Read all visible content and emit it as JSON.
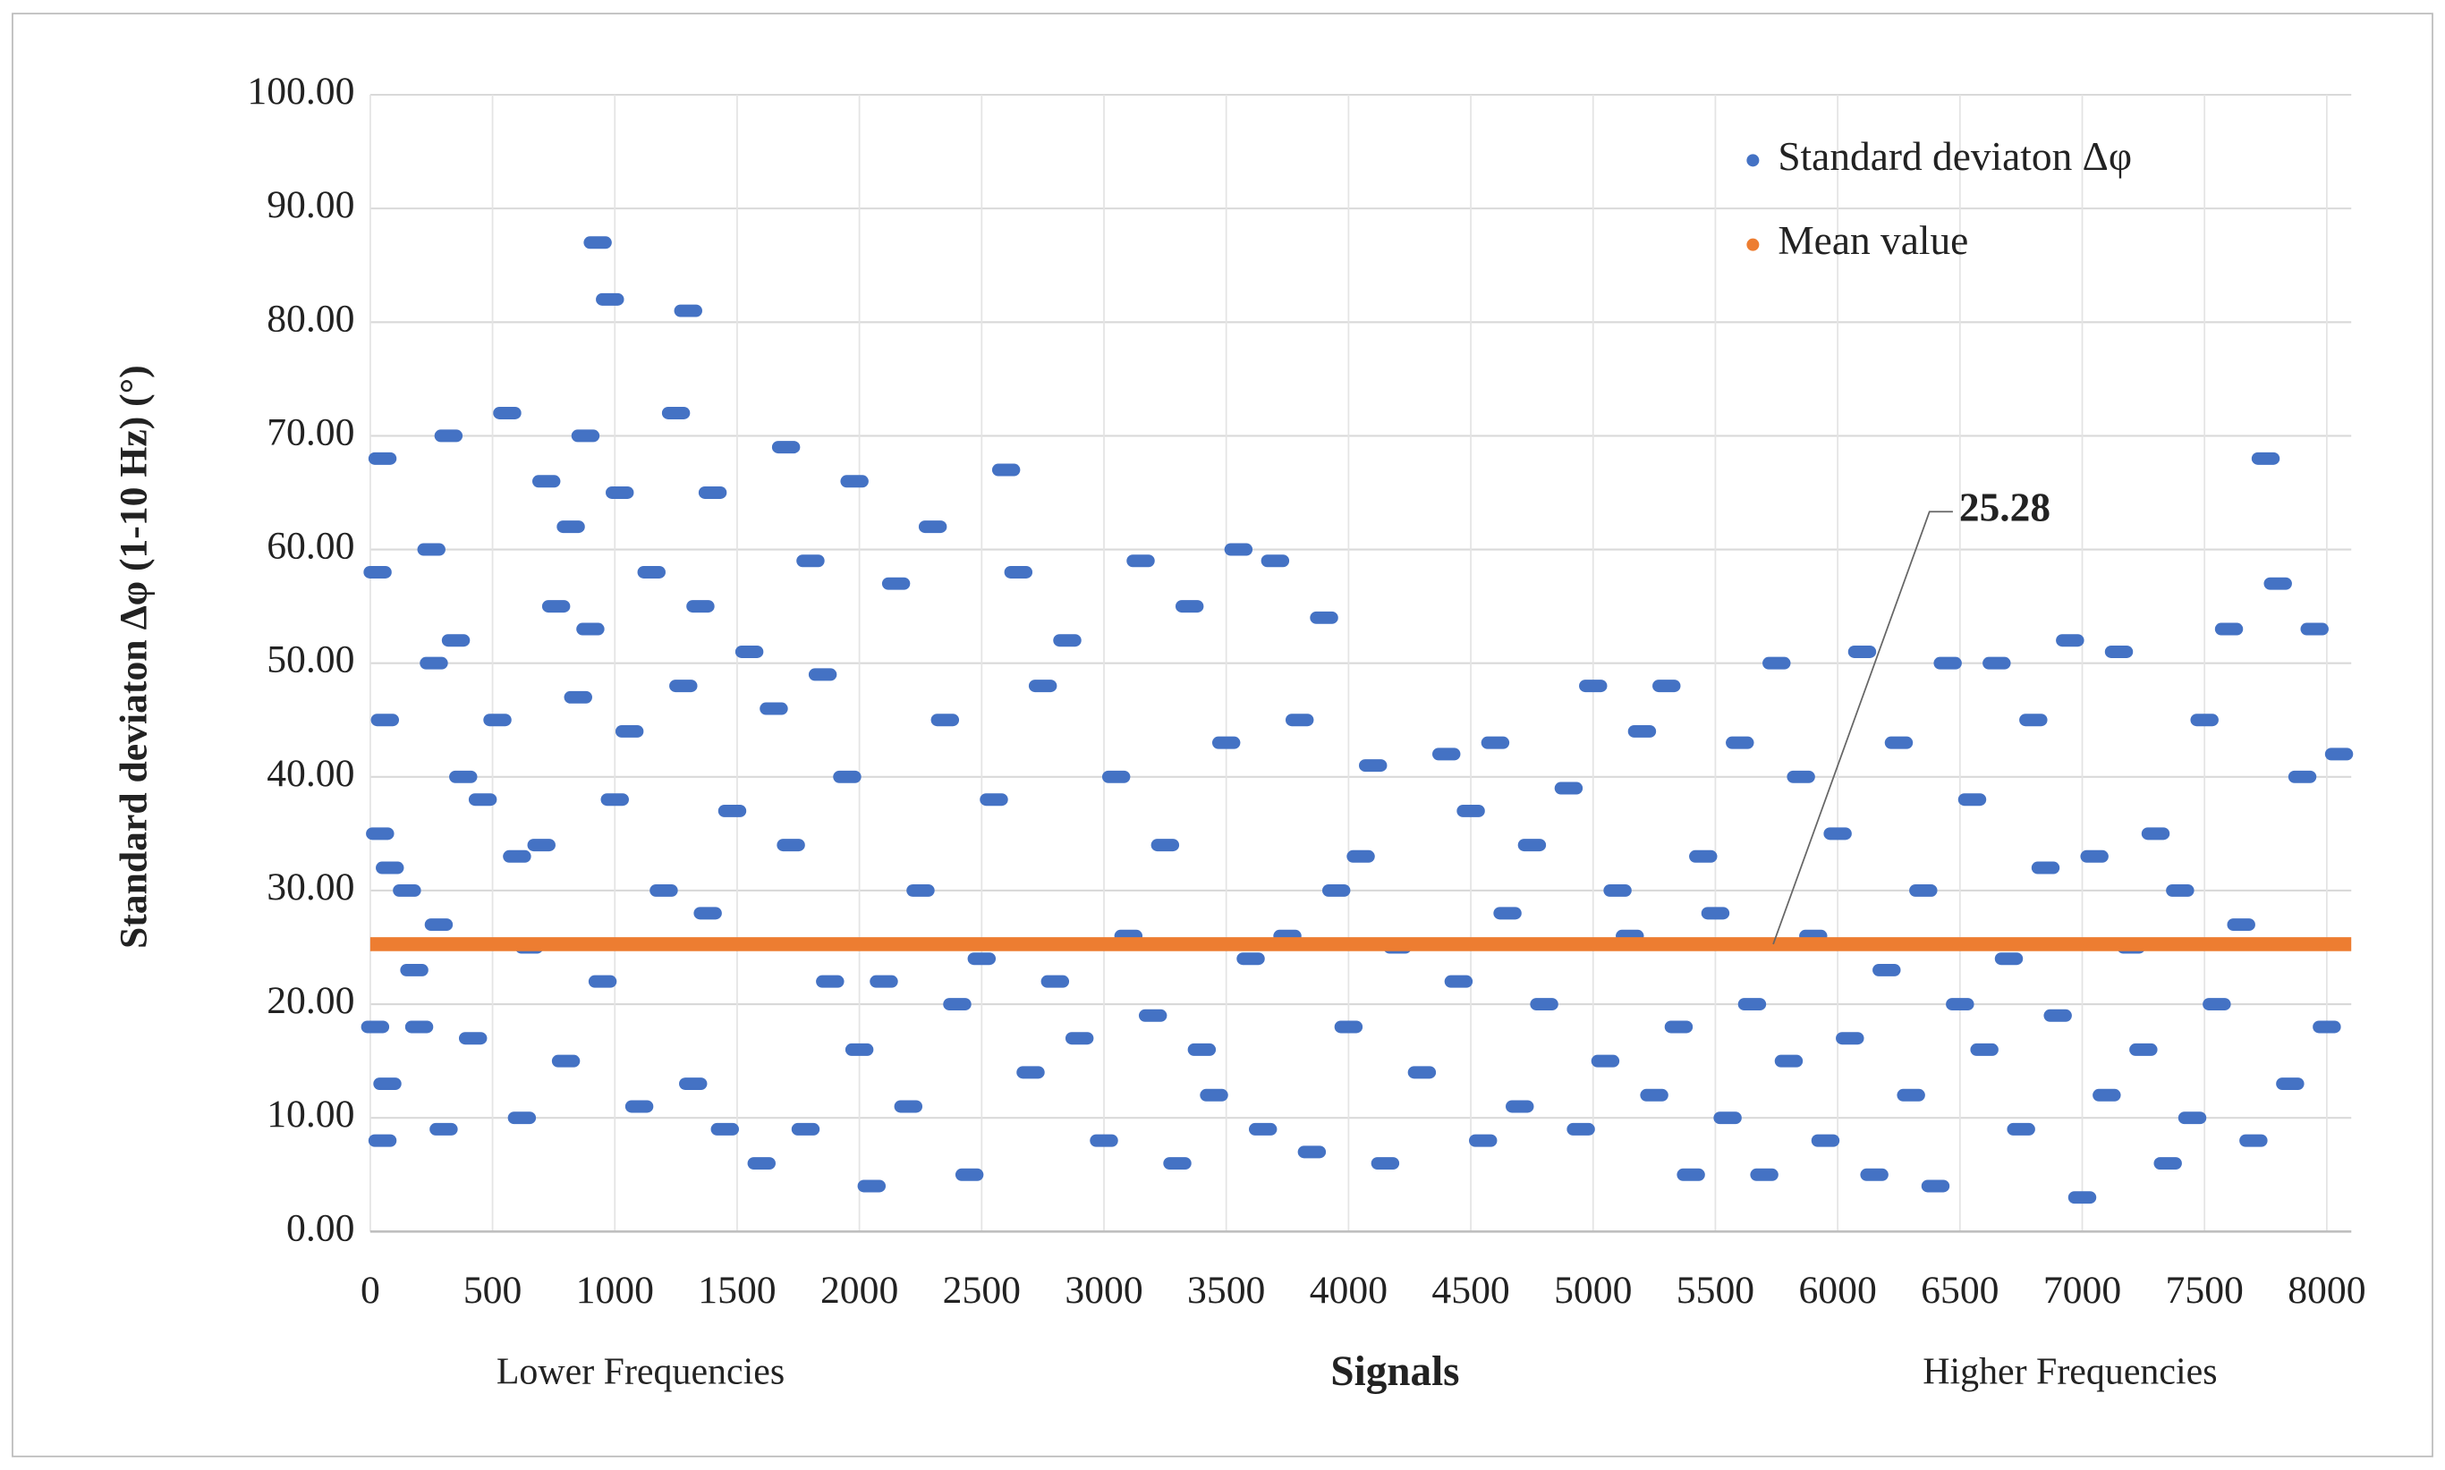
{
  "chart_data": {
    "type": "scatter",
    "x_label": "Signals",
    "y_label": "Standard deviaton  Δφ (1-10 Hz)  (°)",
    "x_notes": [
      "Lower Frequencies",
      "Higher Frequencies"
    ],
    "annotations": [
      {
        "text": "25.28"
      }
    ],
    "xlim": [
      0,
      8100
    ],
    "xticks": [
      0,
      500,
      1000,
      1500,
      2000,
      2500,
      3000,
      3500,
      4000,
      4500,
      5000,
      5500,
      6000,
      6500,
      7000,
      7500,
      8000
    ],
    "ylim": [
      0,
      100
    ],
    "yticks": [
      {
        "value": 0,
        "label": "0.00"
      },
      {
        "value": 10,
        "label": "10.00"
      },
      {
        "value": 20,
        "label": "20.00"
      },
      {
        "value": 30,
        "label": "30.00"
      },
      {
        "value": 40,
        "label": "40.00"
      },
      {
        "value": 50,
        "label": "50.00"
      },
      {
        "value": 60,
        "label": "60.00"
      },
      {
        "value": 70,
        "label": "70.00"
      },
      {
        "value": 80,
        "label": "80.00"
      },
      {
        "value": 90,
        "label": "90.00"
      },
      {
        "value": 100,
        "label": "100.00"
      }
    ],
    "grid": true,
    "legend": "top-right",
    "series": [
      {
        "name": "Standard  deviaton Δφ",
        "color": "#4472c4",
        "x": [
          50,
          30,
          60,
          40,
          80,
          20,
          70,
          50,
          150,
          180,
          200,
          250,
          260,
          280,
          300,
          320,
          350,
          380,
          420,
          460,
          520,
          560,
          600,
          620,
          650,
          700,
          720,
          760,
          800,
          820,
          850,
          880,
          900,
          930,
          950,
          980,
          1000,
          1020,
          1060,
          1100,
          1150,
          1200,
          1250,
          1280,
          1300,
          1320,
          1350,
          1380,
          1400,
          1450,
          1480,
          1550,
          1600,
          1650,
          1700,
          1720,
          1780,
          1800,
          1850,
          1880,
          1950,
          1980,
          2000,
          2050,
          2100,
          2150,
          2200,
          2250,
          2300,
          2350,
          2400,
          2450,
          2500,
          2550,
          2600,
          2650,
          2700,
          2750,
          2800,
          2850,
          2900,
          3000,
          3050,
          3100,
          3150,
          3200,
          3250,
          3300,
          3350,
          3400,
          3450,
          3500,
          3550,
          3600,
          3650,
          3700,
          3750,
          3800,
          3850,
          3900,
          3950,
          4000,
          4050,
          4100,
          4150,
          4200,
          4300,
          4400,
          4450,
          4500,
          4550,
          4600,
          4650,
          4700,
          4750,
          4800,
          4900,
          4950,
          5000,
          5050,
          5100,
          5150,
          5200,
          5250,
          5300,
          5350,
          5400,
          5450,
          5500,
          5550,
          5600,
          5650,
          5700,
          5750,
          5800,
          5850,
          5900,
          5950,
          6000,
          6050,
          6100,
          6150,
          6200,
          6250,
          6300,
          6350,
          6400,
          6450,
          6500,
          6550,
          6600,
          6650,
          6700,
          6750,
          6800,
          6850,
          6900,
          6950,
          7000,
          7050,
          7100,
          7150,
          7200,
          7250,
          7300,
          7350,
          7400,
          7450,
          7500,
          7550,
          7600,
          7650,
          7700,
          7750,
          7800,
          7850,
          7900,
          7950,
          8000,
          8050
        ],
        "values": [
          68,
          58,
          45,
          35,
          32,
          18,
          13,
          8,
          30,
          23,
          18,
          60,
          50,
          27,
          9,
          70,
          52,
          40,
          17,
          38,
          45,
          72,
          33,
          10,
          25,
          34,
          66,
          55,
          15,
          62,
          47,
          70,
          53,
          87,
          22,
          82,
          38,
          65,
          44,
          11,
          58,
          30,
          72,
          48,
          81,
          13,
          55,
          28,
          65,
          9,
          37,
          51,
          6,
          46,
          69,
          34,
          9,
          59,
          49,
          22,
          40,
          66,
          16,
          4,
          22,
          57,
          11,
          30,
          62,
          45,
          20,
          5,
          24,
          38,
          67,
          58,
          14,
          48,
          22,
          52,
          17,
          8,
          40,
          26,
          59,
          19,
          34,
          6,
          55,
          16,
          12,
          43,
          60,
          24,
          9,
          59,
          26,
          45,
          7,
          54,
          30,
          18,
          33,
          41,
          6,
          25,
          14,
          42,
          22,
          37,
          8,
          43,
          28,
          11,
          34,
          20,
          39,
          9,
          48,
          15,
          30,
          26,
          44,
          12,
          48,
          18,
          5,
          33,
          28,
          10,
          43,
          20,
          5,
          50,
          15,
          40,
          26,
          8,
          35,
          17,
          51,
          5,
          23,
          43,
          12,
          30,
          4,
          50,
          20,
          38,
          16,
          50,
          24,
          9,
          45,
          32,
          19,
          52,
          3,
          33,
          12,
          51,
          25,
          16,
          35,
          6,
          30,
          10,
          45,
          20,
          53,
          27,
          8,
          68,
          57,
          13,
          40,
          53,
          18,
          42
        ]
      },
      {
        "name": "Mean value",
        "color": "#ed7d31",
        "line": true,
        "x": [
          0,
          8100
        ],
        "values": [
          25.28,
          25.28
        ]
      }
    ]
  }
}
